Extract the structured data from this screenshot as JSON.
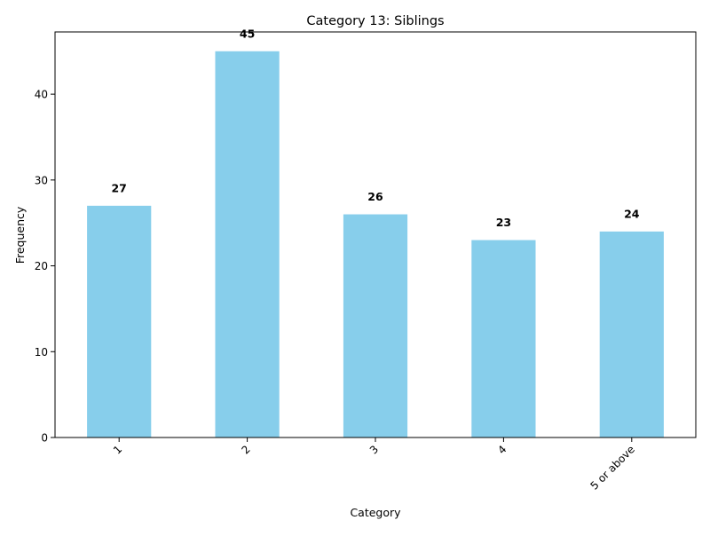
{
  "chart_data": {
    "type": "bar",
    "title": "Category 13: Siblings",
    "xlabel": "Category",
    "ylabel": "Frequency",
    "categories": [
      "1",
      "2",
      "3",
      "4",
      "5 or above"
    ],
    "values": [
      27,
      45,
      26,
      23,
      24
    ],
    "data_labels": [
      "27",
      "45",
      "26",
      "23",
      "24"
    ],
    "yticks": [
      0,
      10,
      20,
      30,
      40
    ],
    "ylim": [
      0,
      47.25
    ],
    "bar_color": "#87ceeb",
    "grid": false,
    "legend": false
  }
}
